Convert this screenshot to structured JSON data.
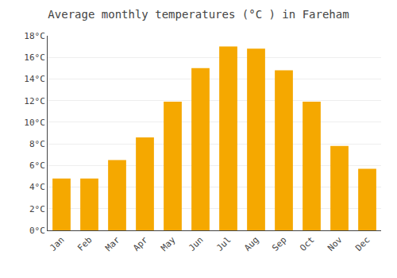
{
  "chart_data": {
    "type": "bar",
    "title": "Average monthly temperatures (°C ) in Fareham",
    "categories": [
      "Jan",
      "Feb",
      "Mar",
      "Apr",
      "May",
      "Jun",
      "Jul",
      "Aug",
      "Sep",
      "Oct",
      "Nov",
      "Dec"
    ],
    "values": [
      4.8,
      4.8,
      6.5,
      8.6,
      11.9,
      15.0,
      17.0,
      16.8,
      14.8,
      11.9,
      7.8,
      5.7
    ],
    "color": "#F5A800",
    "ylim": [
      0,
      18
    ],
    "yticks": [
      {
        "value": 0,
        "label": "0°C"
      },
      {
        "value": 2,
        "label": "2°C"
      },
      {
        "value": 4,
        "label": "4°C"
      },
      {
        "value": 6,
        "label": "6°C"
      },
      {
        "value": 8,
        "label": "8°C"
      },
      {
        "value": 10,
        "label": "10°C"
      },
      {
        "value": 12,
        "label": "12°C"
      },
      {
        "value": 14,
        "label": "14°C"
      },
      {
        "value": 16,
        "label": "16°C"
      },
      {
        "value": 18,
        "label": "18°C"
      }
    ],
    "grid": true
  }
}
